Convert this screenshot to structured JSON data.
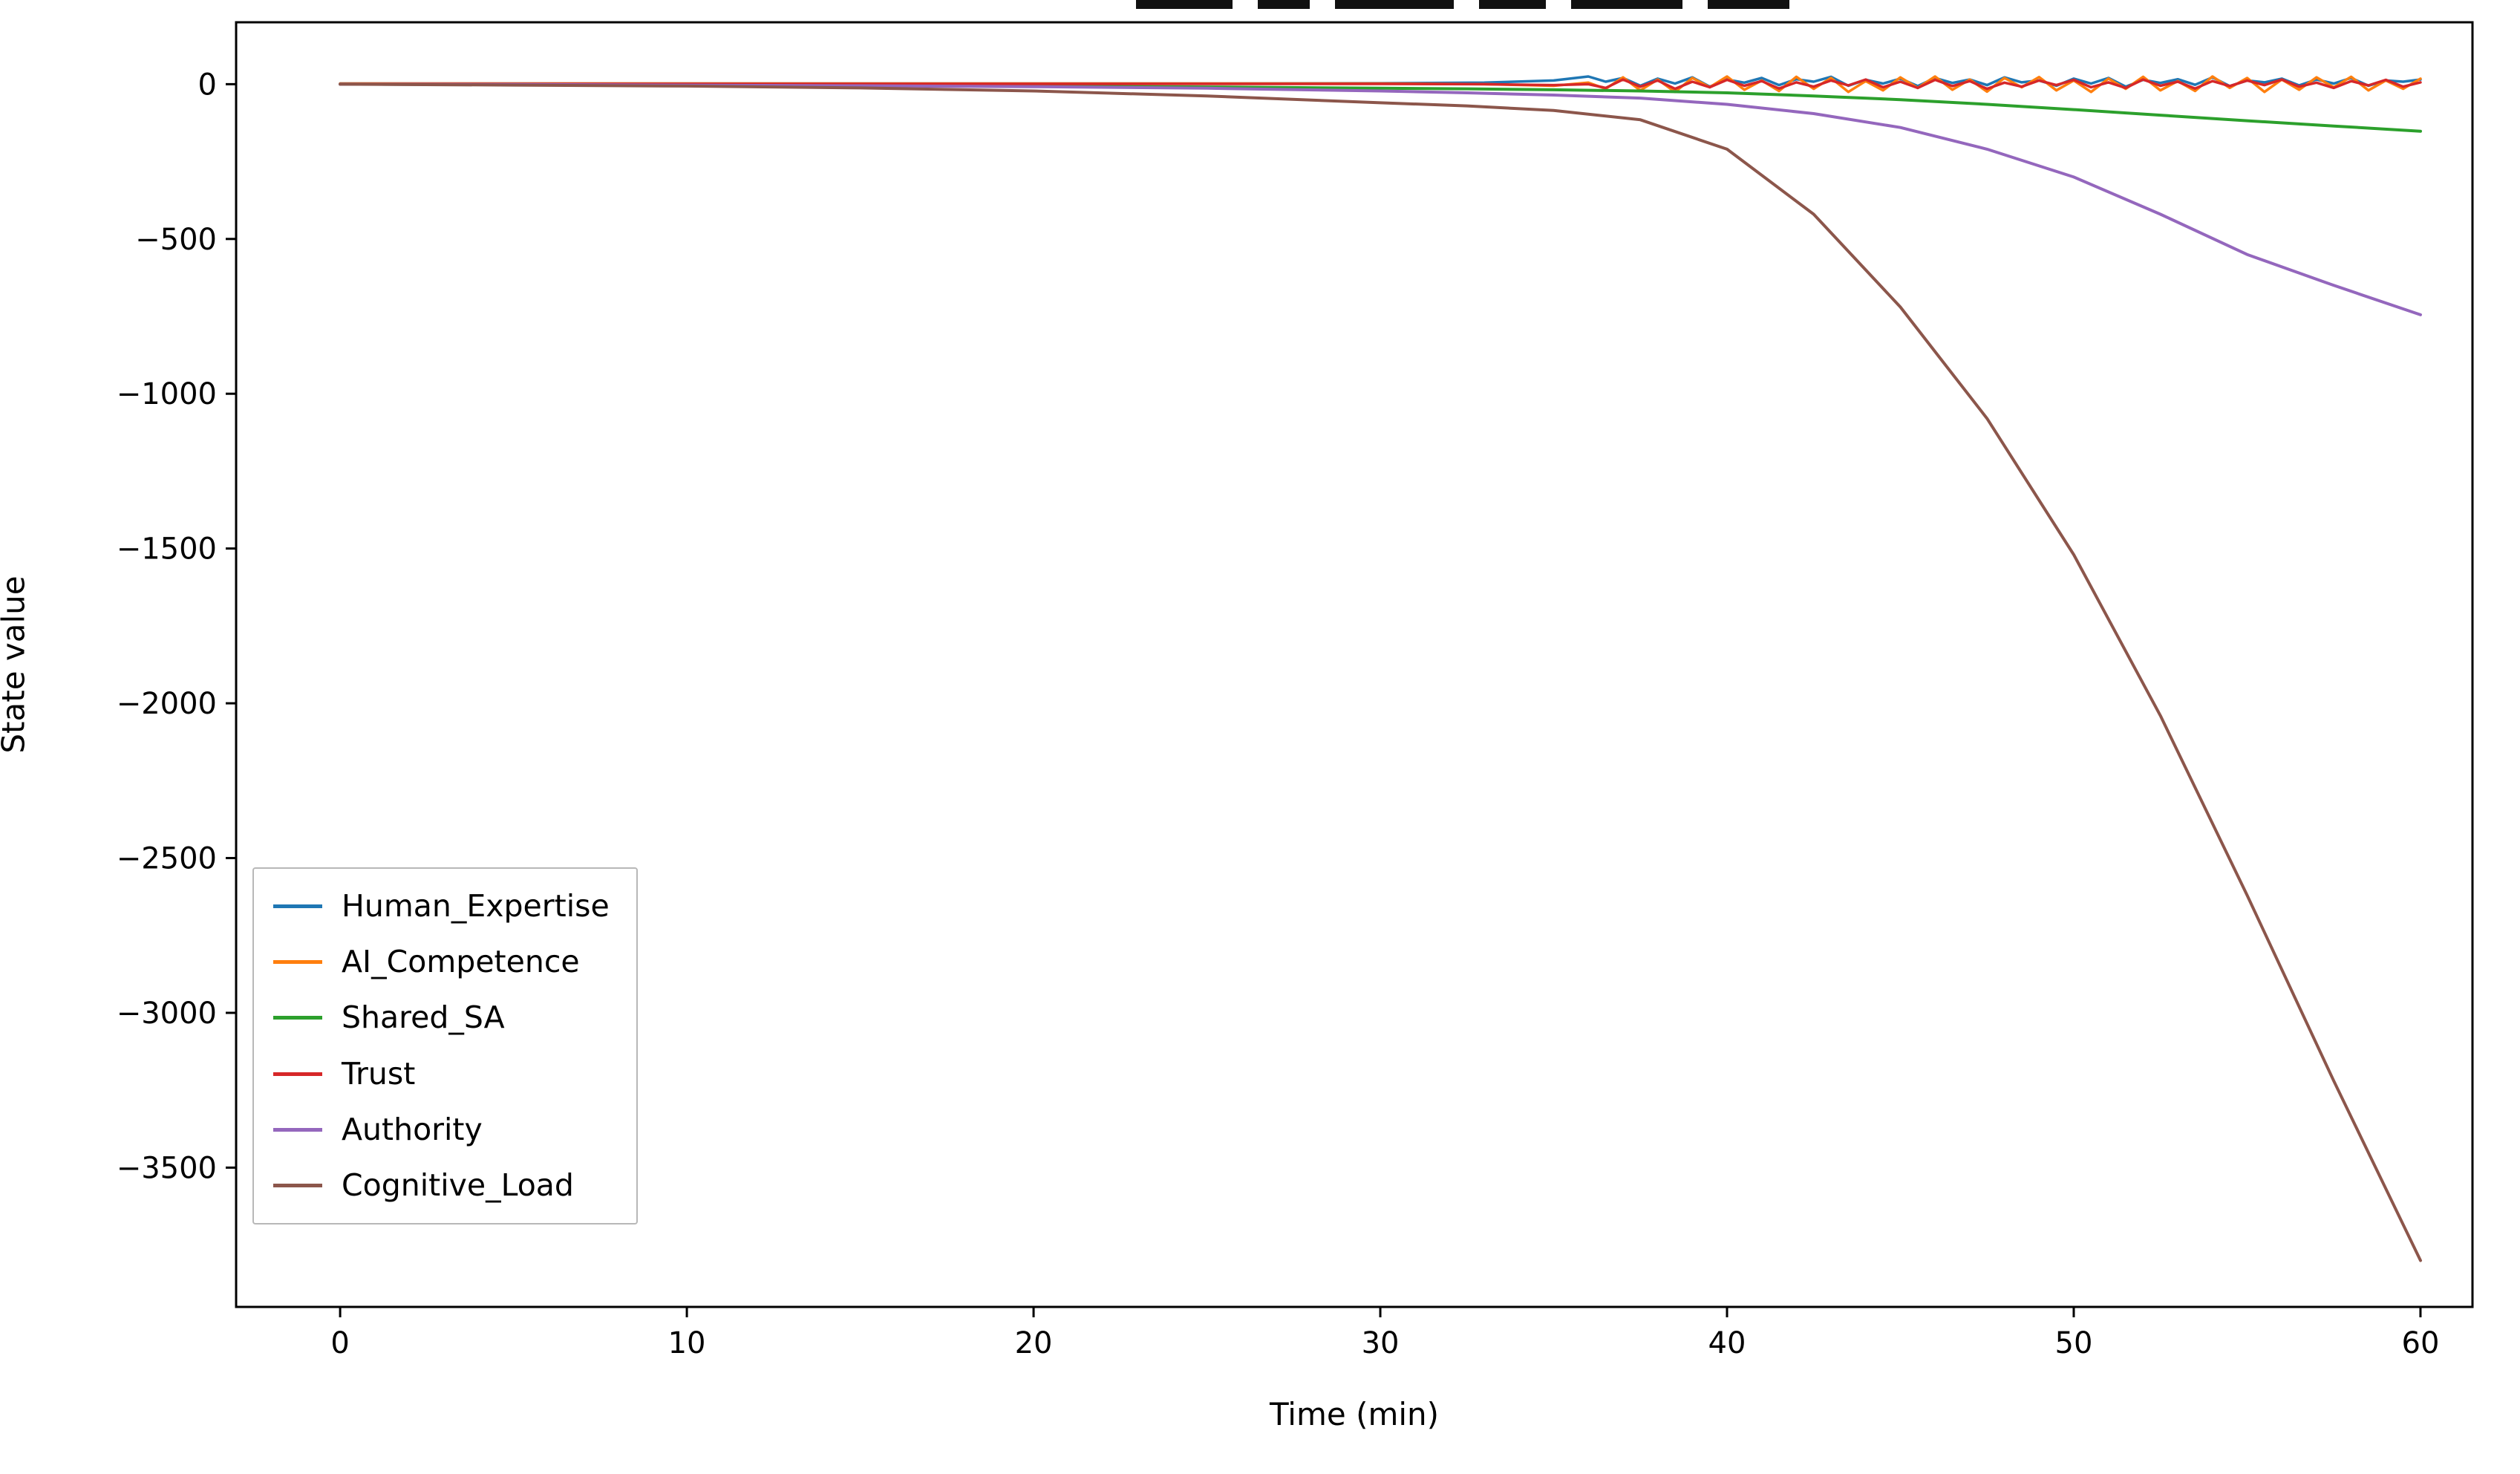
{
  "figure": {
    "background": "#ffffff",
    "title_visible": false
  },
  "chart_data": {
    "type": "line",
    "title": "",
    "xlabel": "Time (min)",
    "ylabel": "State value",
    "xlim": [
      -3,
      61.5
    ],
    "ylim": [
      -3950,
      200
    ],
    "xticks": [
      0,
      10,
      20,
      30,
      40,
      50,
      60
    ],
    "yticks": [
      0,
      -500,
      -1000,
      -1500,
      -2000,
      -2500,
      -3000,
      -3500
    ],
    "grid": false,
    "legend_position": "lower left",
    "series": [
      {
        "name": "Human_Expertise",
        "color": "#1f77b4",
        "width": 3.5,
        "x": [
          0,
          5,
          10,
          15,
          20,
          25,
          30,
          33,
          35,
          36,
          36.5,
          37,
          37.5,
          38,
          38.5,
          39,
          39.5,
          40,
          40.5,
          41,
          41.5,
          42,
          42.5,
          43,
          43.5,
          44,
          44.5,
          45,
          45.5,
          46,
          46.5,
          47,
          47.5,
          48,
          48.5,
          49,
          49.5,
          50,
          50.5,
          51,
          51.5,
          52,
          52.5,
          53,
          53.5,
          54,
          54.5,
          55,
          55.5,
          56,
          56.5,
          57,
          57.5,
          58,
          58.5,
          59,
          59.5,
          60
        ],
        "y": [
          2,
          2,
          2,
          2,
          2,
          2,
          3,
          5,
          12,
          25,
          8,
          20,
          -5,
          18,
          2,
          22,
          -8,
          15,
          5,
          20,
          -3,
          16,
          8,
          24,
          -5,
          14,
          2,
          18,
          -6,
          20,
          4,
          15,
          -3,
          22,
          6,
          12,
          -5,
          18,
          2,
          20,
          -8,
          14,
          4,
          16,
          -2,
          22,
          -6,
          12,
          6,
          18,
          -4,
          15,
          2,
          20,
          -5,
          12,
          8,
          15
        ]
      },
      {
        "name": "AI_Competence",
        "color": "#ff7f0e",
        "width": 3.5,
        "x": [
          0,
          5,
          10,
          15,
          20,
          25,
          30,
          33,
          35,
          36,
          36.5,
          37,
          37.5,
          38,
          38.5,
          39,
          39.5,
          40,
          40.5,
          41,
          41.5,
          42,
          42.5,
          43,
          43.5,
          44,
          44.5,
          45,
          45.5,
          46,
          46.5,
          47,
          47.5,
          48,
          48.5,
          49,
          49.5,
          50,
          50.5,
          51,
          51.5,
          52,
          52.5,
          53,
          53.5,
          54,
          54.5,
          55,
          55.5,
          56,
          56.5,
          57,
          57.5,
          58,
          58.5,
          59,
          59.5,
          60
        ],
        "y": [
          2,
          2,
          2,
          2,
          2,
          2,
          2,
          0,
          -5,
          5,
          -15,
          22,
          -20,
          15,
          -25,
          20,
          -10,
          25,
          -18,
          12,
          -22,
          24,
          -15,
          20,
          -25,
          10,
          -20,
          22,
          -12,
          25,
          -18,
          15,
          -24,
          20,
          -10,
          23,
          -20,
          12,
          -25,
          18,
          -15,
          24,
          -20,
          10,
          -22,
          25,
          -12,
          20,
          -25,
          15,
          -18,
          22,
          -10,
          24,
          -20,
          12,
          -15,
          18
        ]
      },
      {
        "name": "Shared_SA",
        "color": "#2ca02c",
        "width": 4,
        "x": [
          0,
          5,
          10,
          15,
          20,
          25,
          30,
          32.5,
          35,
          37.5,
          40,
          42.5,
          45,
          47.5,
          50,
          52.5,
          55,
          57.5,
          60
        ],
        "y": [
          0,
          -1,
          -2,
          -4,
          -6,
          -9,
          -13,
          -15,
          -18,
          -22,
          -28,
          -38,
          -50,
          -65,
          -82,
          -100,
          -118,
          -135,
          -152
        ]
      },
      {
        "name": "Trust",
        "color": "#d62728",
        "width": 3.5,
        "x": [
          0,
          5,
          10,
          15,
          20,
          25,
          30,
          33,
          35,
          36,
          36.5,
          37,
          37.5,
          38,
          38.5,
          39,
          39.5,
          40,
          40.5,
          41,
          41.5,
          42,
          42.5,
          43,
          43.5,
          44,
          44.5,
          45,
          45.5,
          46,
          46.5,
          47,
          47.5,
          48,
          48.5,
          49,
          49.5,
          50,
          50.5,
          51,
          51.5,
          52,
          52.5,
          53,
          53.5,
          54,
          54.5,
          55,
          55.5,
          56,
          56.5,
          57,
          57.5,
          58,
          58.5,
          59,
          59.5,
          60
        ],
        "y": [
          1,
          1,
          1,
          1,
          1,
          1,
          1,
          0,
          -3,
          0,
          -12,
          15,
          -8,
          12,
          -15,
          8,
          -10,
          14,
          -5,
          10,
          -14,
          6,
          -8,
          12,
          -4,
          15,
          -10,
          8,
          -12,
          14,
          -6,
          10,
          -15,
          5,
          -8,
          12,
          -3,
          14,
          -10,
          6,
          -12,
          15,
          -5,
          8,
          -14,
          10,
          -6,
          12,
          -3,
          15,
          -8,
          5,
          -12,
          10,
          -4,
          14,
          -8,
          6
        ]
      },
      {
        "name": "Authority",
        "color": "#9467bd",
        "width": 4,
        "x": [
          0,
          5,
          10,
          15,
          20,
          25,
          30,
          32.5,
          35,
          37.5,
          40,
          42.5,
          45,
          47.5,
          50,
          52.5,
          55,
          57.5,
          60
        ],
        "y": [
          0,
          -1,
          -3,
          -5,
          -8,
          -13,
          -22,
          -28,
          -35,
          -45,
          -65,
          -95,
          -140,
          -210,
          -300,
          -420,
          -550,
          -650,
          -745
        ]
      },
      {
        "name": "Cognitive_Load",
        "color": "#8c564b",
        "width": 4,
        "x": [
          0,
          5,
          10,
          15,
          20,
          25,
          30,
          32.5,
          35,
          37.5,
          40,
          42.5,
          45,
          47.5,
          50,
          52.5,
          55,
          57.5,
          60
        ],
        "y": [
          0,
          -3,
          -6,
          -12,
          -22,
          -38,
          -60,
          -70,
          -85,
          -115,
          -210,
          -420,
          -720,
          -1080,
          -1520,
          -2040,
          -2620,
          -3220,
          -3800
        ]
      }
    ]
  }
}
